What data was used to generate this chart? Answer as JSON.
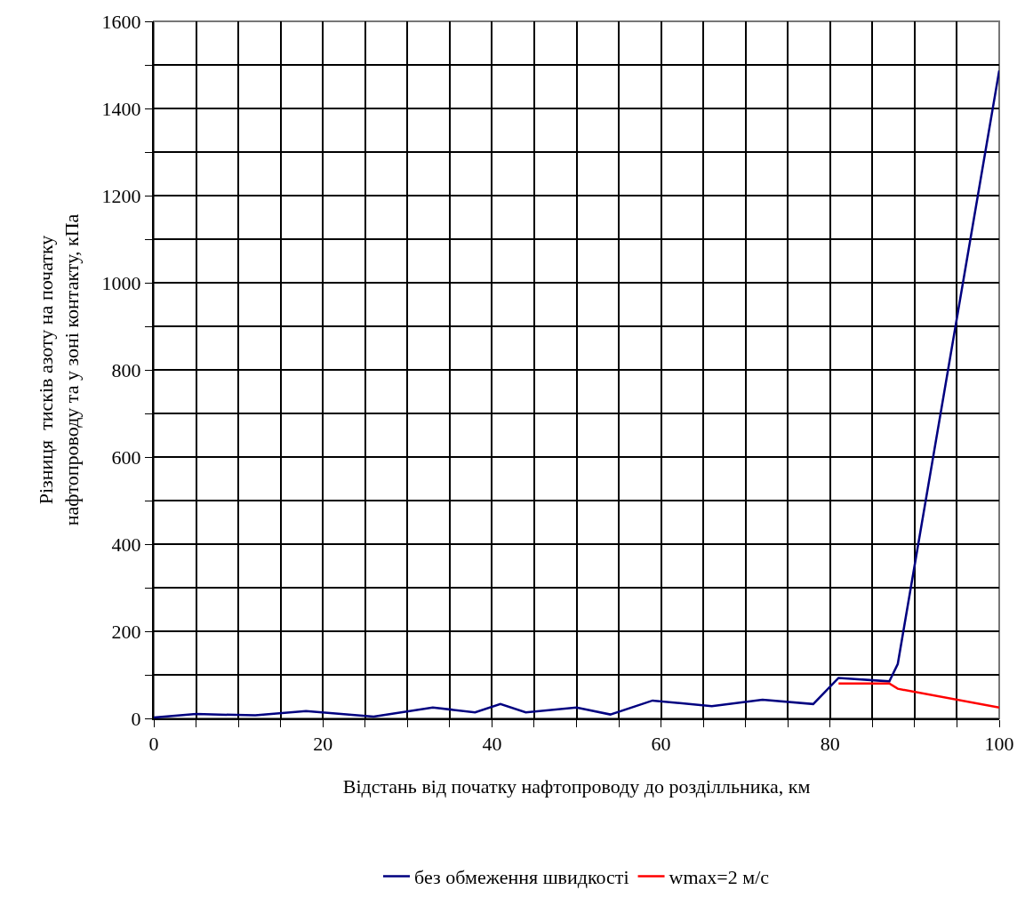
{
  "chart_data": {
    "type": "line",
    "xlabel": "Відстань від початку нафтопроводу до розділльника, км",
    "ylabel": "Різниця  тисків азоту на початку нафтопроводу та у зоні контакту, кПа",
    "series": [
      {
        "name": "без обмеження швидкості",
        "color": "#000080",
        "x": [
          0,
          5,
          12,
          18,
          26,
          33,
          38,
          41,
          44,
          50,
          54,
          59,
          66,
          72,
          78,
          81,
          87,
          88,
          100
        ],
        "values": [
          2,
          10,
          7,
          17,
          4,
          25,
          14,
          33,
          14,
          25,
          9,
          41,
          28,
          43,
          33,
          93,
          85,
          125,
          1487
        ]
      },
      {
        "name": "wmax=2 м/с",
        "color": "#ff0000",
        "x": [
          81,
          87,
          88,
          100
        ],
        "values": [
          80,
          80,
          68,
          25
        ]
      }
    ],
    "xlim": [
      0,
      100
    ],
    "xticks": [
      0,
      {
        "value": 5,
        "label": null
      },
      {
        "value": 10,
        "label": null
      },
      {
        "value": 15,
        "label": null
      },
      20,
      {
        "value": 25,
        "label": null
      },
      {
        "value": 30,
        "label": null
      },
      {
        "value": 35,
        "label": null
      },
      40,
      {
        "value": 45,
        "label": null
      },
      {
        "value": 50,
        "label": null
      },
      {
        "value": 55,
        "label": null
      },
      60,
      {
        "value": 65,
        "label": null
      },
      {
        "value": 70,
        "label": null
      },
      {
        "value": 75,
        "label": null
      },
      80,
      {
        "value": 85,
        "label": null
      },
      {
        "value": 90,
        "label": null
      },
      {
        "value": 95,
        "label": null
      },
      100
    ],
    "ylim": [
      0,
      1600
    ],
    "yticks": [
      0,
      {
        "value": 100,
        "label": null
      },
      200,
      {
        "value": 300,
        "label": null
      },
      400,
      {
        "value": 500,
        "label": null
      },
      600,
      {
        "value": 700,
        "label": null
      },
      800,
      {
        "value": 900,
        "label": null
      },
      1000,
      {
        "value": 1100,
        "label": null
      },
      1200,
      {
        "value": 1300,
        "label": null
      },
      1400,
      {
        "value": 1500,
        "label": null
      },
      1600
    ],
    "grid": true,
    "legend": "bottom",
    "marker": "none",
    "line_style": "solid"
  }
}
